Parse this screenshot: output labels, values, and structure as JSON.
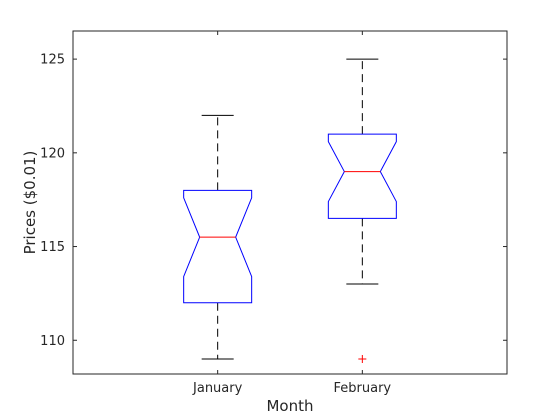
{
  "chart_data": {
    "type": "boxplot",
    "notched": true,
    "categories": [
      "January",
      "February"
    ],
    "boxes": [
      {
        "category": "January",
        "whisker_low": 109,
        "q1": 112,
        "notch_low": 113.4,
        "median": 115.5,
        "notch_high": 117.6,
        "q3": 118,
        "whisker_high": 122,
        "outliers": []
      },
      {
        "category": "February",
        "whisker_low": 113,
        "q1": 116.5,
        "notch_low": 117.4,
        "median": 119,
        "notch_high": 120.6,
        "q3": 121,
        "whisker_high": 125,
        "outliers": [
          109
        ]
      }
    ],
    "xlabel": "Month",
    "ylabel": "Prices ($0.01)",
    "ylim": [
      108.2,
      126.5
    ],
    "yticks": [
      110,
      115,
      120,
      125
    ],
    "grid": false,
    "colors": {
      "box": "#0000ff",
      "median": "#ff0000",
      "whisker": "#000000",
      "outlier": "#ff0000",
      "axes": "#262626"
    }
  }
}
